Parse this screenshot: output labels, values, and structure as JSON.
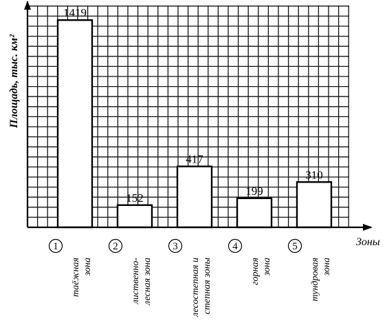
{
  "chart_data": {
    "type": "bar",
    "ylabel": "Площадь, тыс. км²",
    "xlabel": "Зоны",
    "ylim": [
      0,
      1500
    ],
    "grid": true,
    "categories": [
      {
        "num": "1",
        "lines": [
          "таёжная",
          "зона"
        ]
      },
      {
        "num": "2",
        "lines": [
          "лиственно-",
          "лесная зона"
        ]
      },
      {
        "num": "3",
        "lines": [
          "лесостепная и",
          "степная зоны"
        ]
      },
      {
        "num": "4",
        "lines": [
          "горная",
          "зона"
        ]
      },
      {
        "num": "5",
        "lines": [
          "тундровая",
          "зона"
        ]
      }
    ],
    "values": [
      1419,
      152,
      417,
      199,
      310
    ],
    "value_labels": [
      "1419",
      "152",
      "417",
      "199",
      "310"
    ]
  }
}
